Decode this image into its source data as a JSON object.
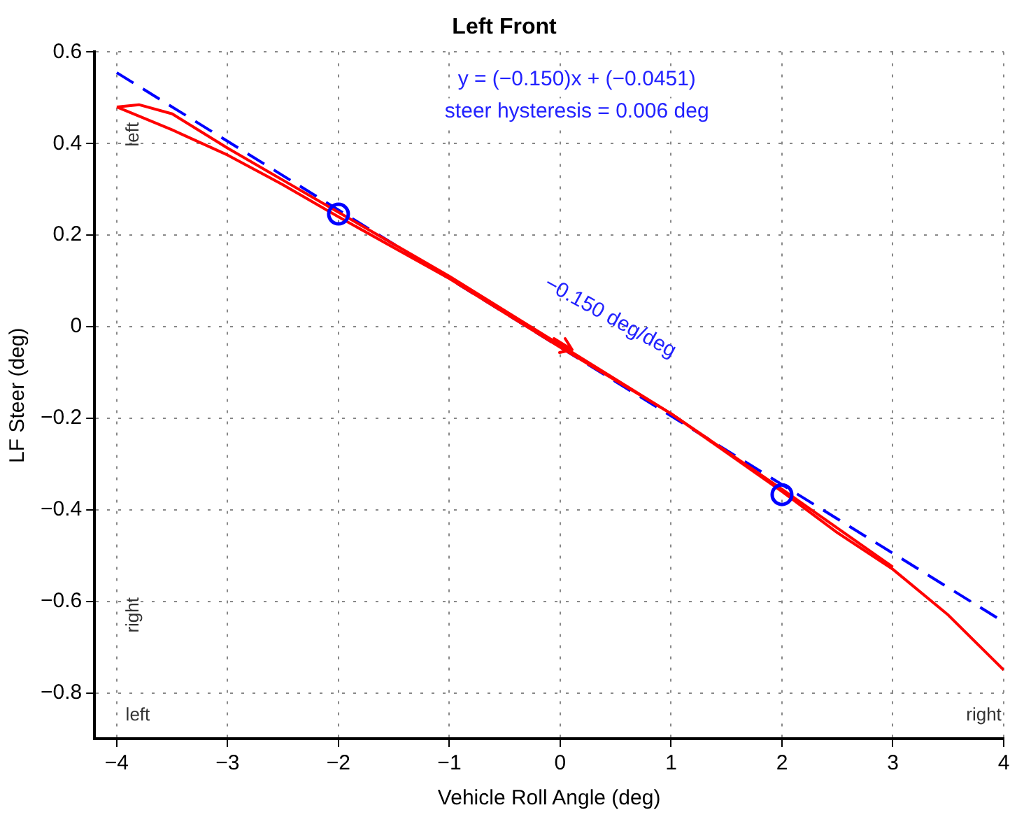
{
  "chart_data": {
    "type": "line",
    "title": "Left Front",
    "xlabel": "Vehicle Roll Angle (deg)",
    "ylabel": "LF Steer (deg)",
    "xlim": [
      -4.2,
      4
    ],
    "ylim": [
      -0.9,
      0.6
    ],
    "xticks": [
      -4,
      -3,
      -2,
      -1,
      0,
      1,
      2,
      3,
      4
    ],
    "yticks": [
      -0.8,
      -0.6,
      -0.4,
      -0.2,
      0,
      0.2,
      0.4,
      0.6
    ],
    "grid": true,
    "legend": false,
    "series": [
      {
        "color": "#ff0000",
        "line_style": "solid",
        "marker": "none",
        "x": [
          -4,
          -3.8,
          -3.5,
          -3,
          -2.5,
          -2,
          -1,
          0,
          1,
          2,
          2.5,
          3,
          3.5,
          4
        ],
        "values": [
          0.48,
          0.485,
          0.465,
          0.39,
          0.32,
          0.25,
          0.11,
          -0.04,
          -0.19,
          -0.36,
          -0.45,
          -0.53,
          -0.63,
          -0.75
        ]
      },
      {
        "color": "#ff0000",
        "line_style": "solid",
        "marker": "none",
        "x": [
          -4,
          -3.5,
          -3,
          -2.5,
          -2,
          -1,
          0,
          1,
          2,
          3
        ],
        "values": [
          0.48,
          0.43,
          0.375,
          0.31,
          0.24,
          0.105,
          -0.045,
          -0.19,
          -0.355,
          -0.525
        ]
      },
      {
        "color": "#0000ff",
        "line_style": "dashed",
        "marker": "none",
        "x": [
          -4,
          4
        ],
        "values": [
          0.555,
          -0.645
        ]
      },
      {
        "type": "scatter",
        "color": "#0000ff",
        "marker": "circle",
        "x": [
          -2,
          2
        ],
        "values": [
          0.246,
          -0.367
        ]
      }
    ],
    "annotations": [
      "y = (−0.150)x + (−0.0451)",
      "steer hysteresis = 0.006 deg",
      "−0.150 deg/deg",
      "left",
      "right",
      "left",
      "right"
    ]
  }
}
